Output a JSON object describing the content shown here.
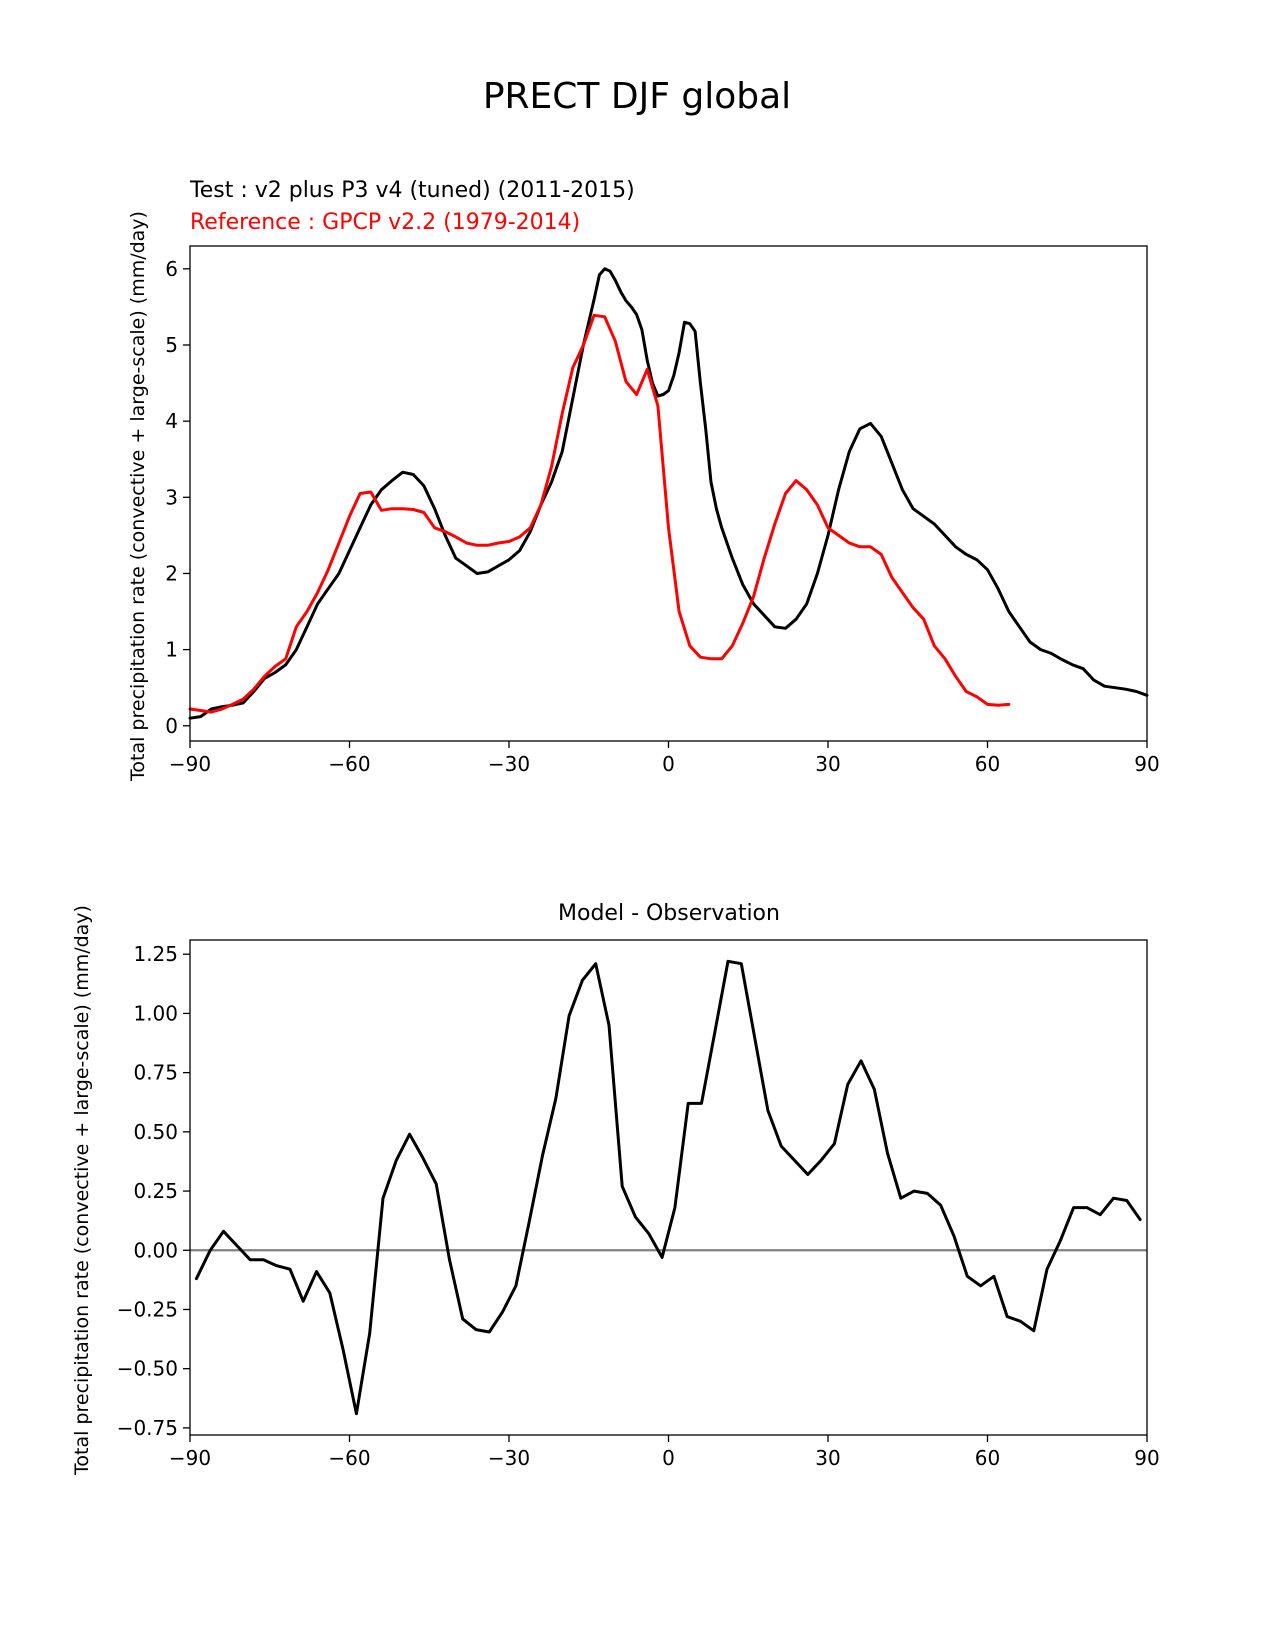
{
  "suptitle": "PRECT DJF global",
  "chart_data": [
    {
      "type": "line",
      "title_left": "Test : v2 plus P3 v4 (tuned) (2011-2015)",
      "title_left2": "Reference : GPCP v2.2 (1979-2014)",
      "ylabel": "Total precipitation rate (convective + large-scale) (mm/day)",
      "xlim": [
        -90,
        90
      ],
      "ylim": [
        -0.2,
        6.3
      ],
      "xticks": [
        -90,
        -60,
        -30,
        0,
        30,
        60,
        90
      ],
      "xtick_labels": [
        "−90",
        "−60",
        "−30",
        "0",
        "30",
        "60",
        "90"
      ],
      "yticks": [
        0,
        1,
        2,
        3,
        4,
        5,
        6
      ],
      "ytick_labels": [
        "0",
        "1",
        "2",
        "3",
        "4",
        "5",
        "6"
      ],
      "series": [
        {
          "color": "#000000",
          "points": [
            [
              -90,
              0.1
            ],
            [
              -88,
              0.12
            ],
            [
              -86,
              0.22
            ],
            [
              -84,
              0.25
            ],
            [
              -82,
              0.27
            ],
            [
              -80,
              0.3
            ],
            [
              -78,
              0.45
            ],
            [
              -76,
              0.62
            ],
            [
              -74,
              0.7
            ],
            [
              -72,
              0.8
            ],
            [
              -70,
              1.0
            ],
            [
              -68,
              1.3
            ],
            [
              -66,
              1.6
            ],
            [
              -64,
              1.8
            ],
            [
              -62,
              2.0
            ],
            [
              -60,
              2.3
            ],
            [
              -58,
              2.6
            ],
            [
              -56,
              2.9
            ],
            [
              -54,
              3.1
            ],
            [
              -52,
              3.22
            ],
            [
              -50,
              3.33
            ],
            [
              -48,
              3.3
            ],
            [
              -46,
              3.15
            ],
            [
              -44,
              2.85
            ],
            [
              -42,
              2.5
            ],
            [
              -40,
              2.2
            ],
            [
              -38,
              2.1
            ],
            [
              -36,
              2.0
            ],
            [
              -34,
              2.02
            ],
            [
              -32,
              2.1
            ],
            [
              -30,
              2.18
            ],
            [
              -28,
              2.3
            ],
            [
              -26,
              2.55
            ],
            [
              -24,
              2.9
            ],
            [
              -22,
              3.2
            ],
            [
              -20,
              3.6
            ],
            [
              -18,
              4.3
            ],
            [
              -16,
              5.0
            ],
            [
              -14,
              5.6
            ],
            [
              -13,
              5.92
            ],
            [
              -12,
              6.0
            ],
            [
              -11,
              5.97
            ],
            [
              -10,
              5.85
            ],
            [
              -9,
              5.7
            ],
            [
              -8,
              5.58
            ],
            [
              -7,
              5.5
            ],
            [
              -6,
              5.4
            ],
            [
              -5,
              5.2
            ],
            [
              -4,
              4.8
            ],
            [
              -3,
              4.5
            ],
            [
              -2,
              4.33
            ],
            [
              -1,
              4.35
            ],
            [
              0,
              4.4
            ],
            [
              1,
              4.6
            ],
            [
              2,
              4.9
            ],
            [
              3,
              5.3
            ],
            [
              4,
              5.28
            ],
            [
              5,
              5.18
            ],
            [
              6,
              4.5
            ],
            [
              7,
              3.9
            ],
            [
              8,
              3.2
            ],
            [
              9,
              2.85
            ],
            [
              10,
              2.6
            ],
            [
              12,
              2.2
            ],
            [
              14,
              1.85
            ],
            [
              16,
              1.6
            ],
            [
              18,
              1.45
            ],
            [
              20,
              1.3
            ],
            [
              22,
              1.28
            ],
            [
              24,
              1.4
            ],
            [
              26,
              1.6
            ],
            [
              28,
              2.0
            ],
            [
              30,
              2.5
            ],
            [
              32,
              3.1
            ],
            [
              34,
              3.6
            ],
            [
              36,
              3.9
            ],
            [
              38,
              3.97
            ],
            [
              40,
              3.8
            ],
            [
              42,
              3.45
            ],
            [
              44,
              3.1
            ],
            [
              46,
              2.85
            ],
            [
              48,
              2.75
            ],
            [
              50,
              2.65
            ],
            [
              52,
              2.5
            ],
            [
              54,
              2.35
            ],
            [
              56,
              2.25
            ],
            [
              58,
              2.18
            ],
            [
              60,
              2.05
            ],
            [
              62,
              1.8
            ],
            [
              64,
              1.5
            ],
            [
              66,
              1.3
            ],
            [
              68,
              1.1
            ],
            [
              70,
              1.0
            ],
            [
              72,
              0.95
            ],
            [
              74,
              0.87
            ],
            [
              76,
              0.8
            ],
            [
              78,
              0.75
            ],
            [
              80,
              0.6
            ],
            [
              82,
              0.52
            ],
            [
              84,
              0.5
            ],
            [
              86,
              0.48
            ],
            [
              88,
              0.45
            ],
            [
              90,
              0.4
            ]
          ]
        },
        {
          "color": "#ff0000",
          "points": [
            [
              -90,
              0.22
            ],
            [
              -88,
              0.2
            ],
            [
              -86,
              0.18
            ],
            [
              -84,
              0.22
            ],
            [
              -82,
              0.28
            ],
            [
              -80,
              0.35
            ],
            [
              -78,
              0.48
            ],
            [
              -76,
              0.65
            ],
            [
              -74,
              0.78
            ],
            [
              -72,
              0.88
            ],
            [
              -70,
              1.3
            ],
            [
              -68,
              1.5
            ],
            [
              -66,
              1.75
            ],
            [
              -64,
              2.05
            ],
            [
              -62,
              2.4
            ],
            [
              -60,
              2.75
            ],
            [
              -58,
              3.05
            ],
            [
              -56,
              3.07
            ],
            [
              -54,
              2.83
            ],
            [
              -52,
              2.85
            ],
            [
              -50,
              2.85
            ],
            [
              -48,
              2.84
            ],
            [
              -46,
              2.8
            ],
            [
              -44,
              2.6
            ],
            [
              -42,
              2.55
            ],
            [
              -40,
              2.48
            ],
            [
              -38,
              2.4
            ],
            [
              -36,
              2.37
            ],
            [
              -34,
              2.37
            ],
            [
              -32,
              2.4
            ],
            [
              -30,
              2.42
            ],
            [
              -28,
              2.48
            ],
            [
              -26,
              2.6
            ],
            [
              -24,
              2.9
            ],
            [
              -22,
              3.4
            ],
            [
              -20,
              4.1
            ],
            [
              -18,
              4.7
            ],
            [
              -16,
              5.0
            ],
            [
              -14,
              5.39
            ],
            [
              -12,
              5.37
            ],
            [
              -10,
              5.05
            ],
            [
              -8,
              4.52
            ],
            [
              -6,
              4.35
            ],
            [
              -4,
              4.68
            ],
            [
              -2,
              4.2
            ],
            [
              0,
              2.6
            ],
            [
              2,
              1.5
            ],
            [
              4,
              1.05
            ],
            [
              6,
              0.9
            ],
            [
              8,
              0.88
            ],
            [
              10,
              0.88
            ],
            [
              12,
              1.05
            ],
            [
              14,
              1.35
            ],
            [
              16,
              1.7
            ],
            [
              18,
              2.2
            ],
            [
              20,
              2.65
            ],
            [
              22,
              3.05
            ],
            [
              24,
              3.22
            ],
            [
              26,
              3.1
            ],
            [
              28,
              2.9
            ],
            [
              30,
              2.6
            ],
            [
              32,
              2.5
            ],
            [
              34,
              2.4
            ],
            [
              36,
              2.35
            ],
            [
              38,
              2.35
            ],
            [
              40,
              2.25
            ],
            [
              42,
              1.95
            ],
            [
              44,
              1.75
            ],
            [
              46,
              1.55
            ],
            [
              48,
              1.4
            ],
            [
              50,
              1.05
            ],
            [
              52,
              0.88
            ],
            [
              54,
              0.65
            ],
            [
              56,
              0.45
            ],
            [
              58,
              0.38
            ],
            [
              60,
              0.28
            ],
            [
              62,
              0.27
            ],
            [
              64,
              0.28
            ]
          ]
        }
      ]
    },
    {
      "type": "line",
      "title": "Model - Observation",
      "ylabel": "Total precipitation rate (convective + large-scale) (mm/day)",
      "xlim": [
        -90,
        90
      ],
      "ylim": [
        -0.78,
        1.31
      ],
      "xticks": [
        -90,
        -60,
        -30,
        0,
        30,
        60,
        90
      ],
      "xtick_labels": [
        "−90",
        "−60",
        "−30",
        "0",
        "30",
        "60",
        "90"
      ],
      "yticks": [
        1.25,
        1.0,
        0.75,
        0.5,
        0.25,
        0.0,
        -0.25,
        -0.5,
        -0.75
      ],
      "ytick_labels": [
        "1.25",
        "1.00",
        "0.75",
        "0.50",
        "0.25",
        "0.00",
        "−0.25",
        "−0.50",
        "−0.75"
      ],
      "zero_line_color": "#808080",
      "series": [
        {
          "color": "#000000",
          "points": [
            [
              -88.8,
              -0.12
            ],
            [
              -86.2,
              0.0
            ],
            [
              -83.7,
              0.08
            ],
            [
              -81.2,
              0.02
            ],
            [
              -78.7,
              -0.04
            ],
            [
              -76.2,
              -0.04
            ],
            [
              -73.7,
              -0.065
            ],
            [
              -71.2,
              -0.08
            ],
            [
              -68.7,
              -0.215
            ],
            [
              -66.2,
              -0.09
            ],
            [
              -63.7,
              -0.18
            ],
            [
              -61.2,
              -0.42
            ],
            [
              -58.7,
              -0.69
            ],
            [
              -56.2,
              -0.35
            ],
            [
              -53.7,
              0.22
            ],
            [
              -51.2,
              0.38
            ],
            [
              -48.7,
              0.49
            ],
            [
              -46.2,
              0.39
            ],
            [
              -43.7,
              0.28
            ],
            [
              -41.2,
              -0.04
            ],
            [
              -38.7,
              -0.29
            ],
            [
              -36.2,
              -0.335
            ],
            [
              -33.7,
              -0.345
            ],
            [
              -31.2,
              -0.26
            ],
            [
              -28.7,
              -0.15
            ],
            [
              -26.2,
              0.12
            ],
            [
              -23.7,
              0.4
            ],
            [
              -21.2,
              0.64
            ],
            [
              -18.7,
              0.99
            ],
            [
              -16.2,
              1.14
            ],
            [
              -13.7,
              1.21
            ],
            [
              -11.2,
              0.95
            ],
            [
              -8.7,
              0.27
            ],
            [
              -6.2,
              0.14
            ],
            [
              -3.7,
              0.07
            ],
            [
              -1.2,
              -0.03
            ],
            [
              1.2,
              0.18
            ],
            [
              3.7,
              0.62
            ],
            [
              6.2,
              0.62
            ],
            [
              8.7,
              0.92
            ],
            [
              11.2,
              1.22
            ],
            [
              13.7,
              1.21
            ],
            [
              16.2,
              0.9
            ],
            [
              18.7,
              0.59
            ],
            [
              21.2,
              0.44
            ],
            [
              23.7,
              0.38
            ],
            [
              26.2,
              0.32
            ],
            [
              28.7,
              0.38
            ],
            [
              31.2,
              0.45
            ],
            [
              33.7,
              0.7
            ],
            [
              36.2,
              0.8
            ],
            [
              38.7,
              0.68
            ],
            [
              41.2,
              0.41
            ],
            [
              43.7,
              0.22
            ],
            [
              46.2,
              0.25
            ],
            [
              48.7,
              0.24
            ],
            [
              51.2,
              0.19
            ],
            [
              53.7,
              0.06
            ],
            [
              56.2,
              -0.11
            ],
            [
              58.7,
              -0.15
            ],
            [
              61.2,
              -0.11
            ],
            [
              63.7,
              -0.28
            ],
            [
              66.2,
              -0.3
            ],
            [
              68.7,
              -0.34
            ],
            [
              71.2,
              -0.08
            ],
            [
              73.7,
              0.04
            ],
            [
              76.2,
              0.18
            ],
            [
              78.7,
              0.18
            ],
            [
              81.2,
              0.15
            ],
            [
              83.7,
              0.22
            ],
            [
              86.2,
              0.21
            ],
            [
              88.7,
              0.13
            ]
          ]
        }
      ]
    }
  ]
}
